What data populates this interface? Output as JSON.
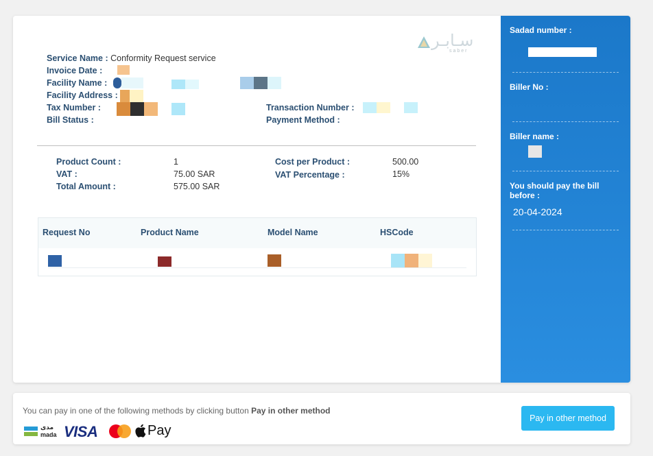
{
  "invoice": {
    "service_name_label": "Service Name :",
    "service_name_value": "Conformity Request service",
    "invoice_date_label": "Invoice Date :",
    "facility_name_label": "Facility Name :",
    "facility_address_label": "Facility Address :",
    "tax_number_label": "Tax Number :",
    "bill_status_label": "Bill Status :",
    "transaction_number_label": "Transaction Number :",
    "payment_method_label": "Payment Method :"
  },
  "logo": {
    "arabic": "سـابـر",
    "latin": "saber"
  },
  "product": {
    "count_label": "Product Count :",
    "count_value": "1",
    "vat_label": "VAT :",
    "vat_value": "75.00 SAR",
    "total_label": "Total Amount :",
    "total_value": "575.00 SAR",
    "cost_label": "Cost per Product :",
    "cost_value": "500.00",
    "vat_pct_label": "VAT Percentage :",
    "vat_pct_value": "15%"
  },
  "table": {
    "headers": [
      "Request No",
      "Product Name",
      "Model Name",
      "HSCode"
    ]
  },
  "sidebar": {
    "sadad_label": "Sadad number :",
    "biller_no_label": "Biller No :",
    "biller_name_label": "Biller name :",
    "due_label": "You should pay the bill before :",
    "due_value": "20-04-2024"
  },
  "footer": {
    "text_prefix": "You can pay in one of the following methods by clicking button",
    "text_bold": "Pay in other method",
    "button_label": "Pay in other method",
    "mada_ar": "مدى",
    "mada_en": "mada",
    "visa": "VISA",
    "apple_pay": "Pay"
  },
  "colors": {
    "label": "#2b4f72",
    "sidebar": "#1b78c9",
    "button": "#2bb8f1"
  }
}
